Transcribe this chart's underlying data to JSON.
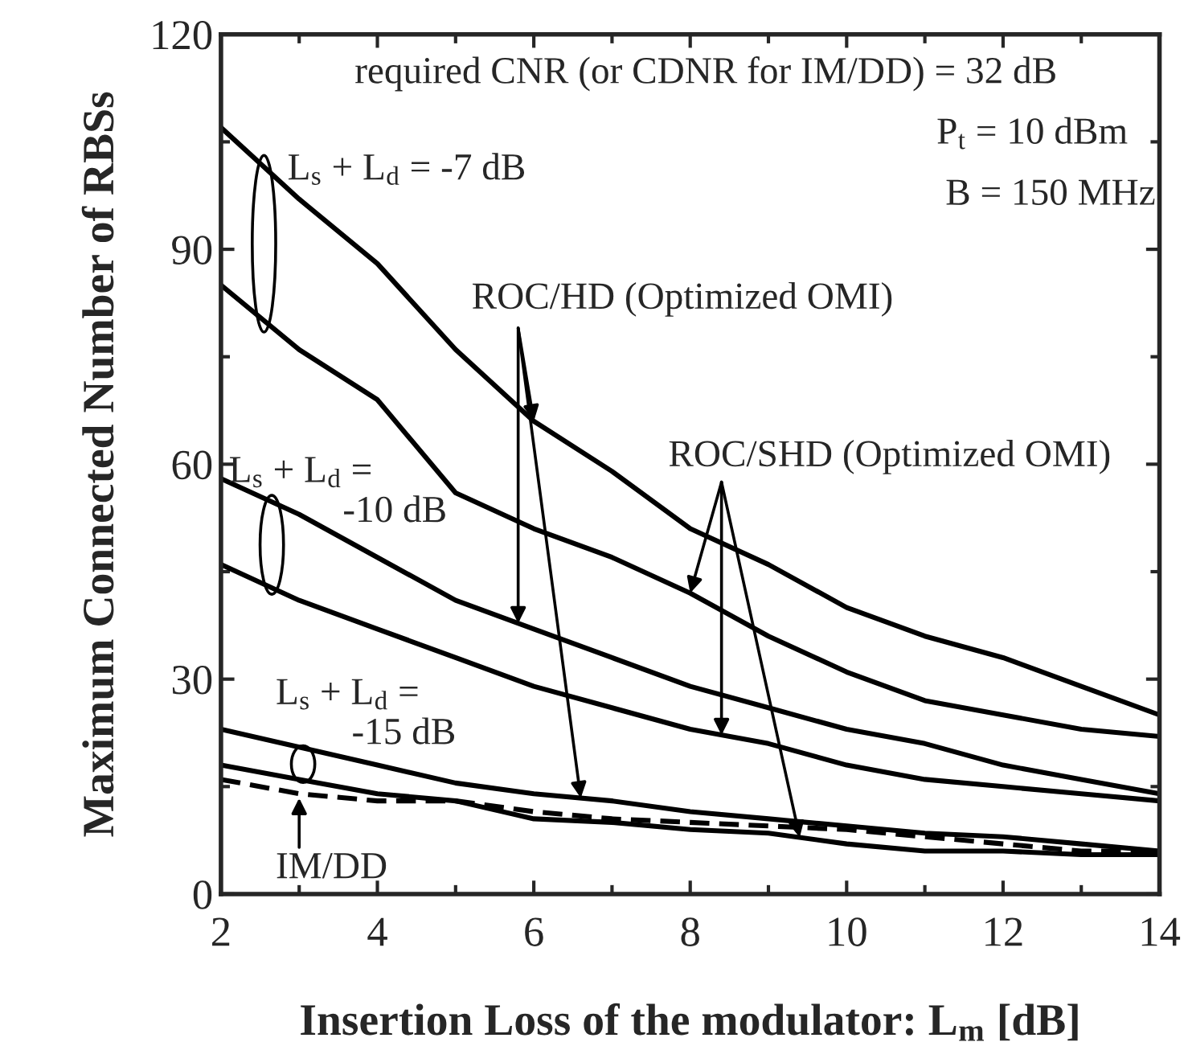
{
  "chart_data": {
    "type": "line",
    "xlabel": "Insertion Loss of the modulator: L$_{m}$ [dB]",
    "ylabel": "Maximum Connected Number of RBSs",
    "xlim": [
      2,
      14
    ],
    "xticks": [
      2,
      4,
      6,
      8,
      10,
      12,
      14
    ],
    "ylim": [
      0,
      120
    ],
    "yticks": [
      0,
      30,
      60,
      90,
      120
    ],
    "grid": false,
    "legend": false,
    "marker": "none",
    "x": [
      2,
      3,
      4,
      5,
      6,
      7,
      8,
      9,
      10,
      11,
      12,
      13,
      14
    ],
    "series": [
      {
        "color": "#000000",
        "line_style": "solid",
        "values": [
          107,
          97,
          88,
          76,
          66,
          59,
          51,
          46,
          40,
          36,
          33,
          29,
          25
        ]
      },
      {
        "color": "#000000",
        "line_style": "solid",
        "values": [
          85,
          76,
          69,
          56,
          51,
          47,
          42,
          36,
          31,
          27,
          25,
          23,
          22
        ]
      },
      {
        "color": "#000000",
        "line_style": "solid",
        "values": [
          58,
          53,
          47,
          41,
          37,
          33,
          29,
          26,
          23,
          21,
          18,
          16,
          14
        ]
      },
      {
        "color": "#000000",
        "line_style": "solid",
        "values": [
          46,
          41,
          37,
          33,
          29,
          26,
          23,
          21,
          18,
          16,
          15,
          14,
          13
        ]
      },
      {
        "color": "#000000",
        "line_style": "solid",
        "values": [
          23,
          20.5,
          18,
          15.5,
          14,
          13,
          11.5,
          10.5,
          9.5,
          8.5,
          8,
          7,
          6
        ]
      },
      {
        "color": "#000000",
        "line_style": "solid",
        "values": [
          18,
          16,
          14,
          13,
          10.5,
          10,
          9,
          8.5,
          7,
          6,
          6,
          5.5,
          5.5
        ]
      },
      {
        "color": "#000000",
        "line_style": "dashed",
        "values": [
          16,
          14,
          13,
          13,
          11.5,
          10.5,
          10,
          9.5,
          9,
          8,
          7,
          6,
          6
        ]
      }
    ],
    "annotations": [
      "required CNR (or CDNR for IM/DD) = 32 dB",
      "P$_{t}$ = 10 dBm",
      "B = 150 MHz",
      {
        "text": "ROC/HD (Optimized OMI)",
        "x": 6,
        "y": 66
      },
      {
        "text": "ROC/SHD (Optimized OMI)",
        "x": 8,
        "y": 42
      },
      "L$_{s}$ + L$_{d}$ = -7 dB",
      "L$_{s}$ + L$_{d}$ =\n            -10 dB",
      "L$_{s}$ + L$_{d}$ =\n        -15 dB",
      {
        "text": "IM/DD",
        "x": 3,
        "y": 14
      }
    ]
  }
}
